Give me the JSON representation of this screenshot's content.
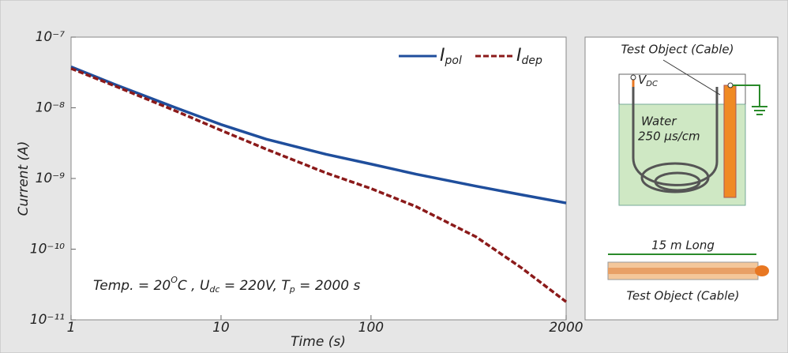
{
  "chart_data": {
    "type": "line",
    "xlabel": "Time (s)",
    "ylabel": "Current (A)",
    "x": [
      1,
      2,
      5,
      10,
      20,
      50,
      100,
      200,
      500,
      1000,
      2000
    ],
    "series": [
      {
        "name": "I",
        "subscript": "pol",
        "color": "#1f4e9c",
        "dash": "solid",
        "values": [
          3.8e-08,
          2.1e-08,
          1e-08,
          5.8e-09,
          3.6e-09,
          2.2e-09,
          1.6e-09,
          1.15e-09,
          7.8e-10,
          5.9e-10,
          4.5e-10
        ]
      },
      {
        "name": "I",
        "subscript": "dep",
        "color": "#8b1a1a",
        "dash": "dashed",
        "values": [
          3.6e-08,
          2e-08,
          9e-09,
          4.8e-09,
          2.6e-09,
          1.2e-09,
          7.2e-10,
          4e-10,
          1.5e-10,
          5.5e-11,
          1.8e-11
        ]
      }
    ],
    "log_x": true,
    "log_y": true,
    "xlim": [
      1,
      2000
    ],
    "ylim": [
      1e-11,
      1e-07
    ],
    "xticks": [
      1,
      10,
      100,
      2000
    ],
    "yticks": [
      {
        "value": 1e-11,
        "label": "10⁻¹¹"
      },
      {
        "value": 1e-10,
        "label": "10⁻¹⁰"
      },
      {
        "value": 1e-09,
        "label": "10⁻⁹"
      },
      {
        "value": 1e-08,
        "label": "10⁻⁸"
      },
      {
        "value": 1e-07,
        "label": "10⁻⁷"
      }
    ],
    "annotation": [
      "Temp. = 20",
      "O",
      "C , U",
      "dc",
      " = 220V, T",
      "p",
      " = 2000 s"
    ]
  },
  "diagram": {
    "top_label": "Test Object (Cable)",
    "vdc": "V",
    "vdc_sub": "DC",
    "water": "Water",
    "conductivity": "250 µs/cm",
    "length": "15 m Long",
    "bottom_label": "Test Object (Cable)"
  }
}
